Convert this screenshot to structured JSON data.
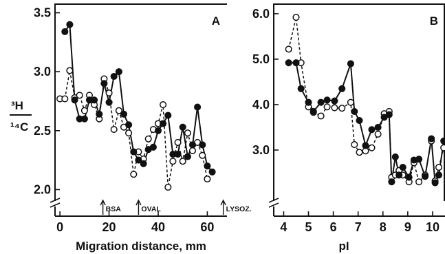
{
  "figure": {
    "ylabel_top": "³H",
    "ylabel_bottom": "¹⁴C"
  },
  "chart_data": [
    {
      "type": "line",
      "panel_label": "A",
      "title": "",
      "xlabel": "Migration distance, mm",
      "ylabel": "³H/¹⁴C",
      "xlim": [
        -2,
        68
      ],
      "ylim": [
        1.95,
        3.55
      ],
      "xticks": [
        0,
        20,
        40,
        60
      ],
      "yticks": [
        2.0,
        2.5,
        3.0,
        3.5
      ],
      "ytick_labels": [
        "2.0",
        "2.5",
        "3.0",
        "3.5"
      ],
      "grid": false,
      "legend": "none",
      "markers": [
        {
          "label": "BSA",
          "x": 17.5
        },
        {
          "label": "OVAL",
          "x": 32
        },
        {
          "label": "LYSOZ.",
          "x": 66.5
        }
      ],
      "series": [
        {
          "style": "filled-circle-solid",
          "points": [
            [
              2,
              3.34
            ],
            [
              4,
              3.4
            ],
            [
              6,
              2.76
            ],
            [
              8,
              2.6
            ],
            [
              10,
              2.6
            ],
            [
              12,
              2.76
            ],
            [
              14,
              2.76
            ],
            [
              16,
              2.64
            ],
            [
              18,
              2.9
            ],
            [
              20,
              2.74
            ],
            [
              22,
              2.96
            ],
            [
              24,
              3.0
            ],
            [
              26,
              2.64
            ],
            [
              28,
              2.55
            ],
            [
              30,
              2.32
            ],
            [
              32,
              2.25
            ],
            [
              34,
              2.22
            ],
            [
              36,
              2.34
            ],
            [
              38,
              2.36
            ],
            [
              40,
              2.5
            ],
            [
              42,
              2.56
            ],
            [
              44,
              2.63
            ],
            [
              46,
              2.3
            ],
            [
              48,
              2.3
            ],
            [
              50,
              2.53
            ],
            [
              52,
              2.28
            ],
            [
              54,
              2.38
            ],
            [
              56,
              2.7
            ],
            [
              58,
              2.38
            ],
            [
              60,
              2.2
            ],
            [
              62,
              2.15
            ]
          ]
        },
        {
          "style": "open-circle-dashed",
          "points": [
            [
              0,
              2.77
            ],
            [
              2,
              2.77
            ],
            [
              4,
              3.01
            ],
            [
              6,
              2.78
            ],
            [
              8,
              2.8
            ],
            [
              10,
              2.67
            ],
            [
              12,
              2.8
            ],
            [
              14,
              2.72
            ],
            [
              16,
              2.6
            ],
            [
              18,
              2.94
            ],
            [
              20,
              2.82
            ],
            [
              22,
              2.51
            ],
            [
              24,
              2.67
            ],
            [
              26,
              2.53
            ],
            [
              28,
              2.48
            ],
            [
              30,
              2.13
            ],
            [
              32,
              2.32
            ],
            [
              34,
              2.26
            ],
            [
              36,
              2.43
            ],
            [
              38,
              2.51
            ],
            [
              40,
              2.56
            ],
            [
              42,
              2.72
            ],
            [
              44,
              2.02
            ],
            [
              46,
              2.24
            ],
            [
              48,
              2.4
            ],
            [
              50,
              2.24
            ],
            [
              52,
              2.48
            ],
            [
              54,
              2.33
            ],
            [
              56,
              2.4
            ],
            [
              58,
              2.29
            ],
            [
              60,
              2.09
            ]
          ]
        }
      ]
    },
    {
      "type": "line",
      "panel_label": "B",
      "title": "",
      "xlabel": "pI",
      "ylabel": "³H/¹⁴C",
      "xlim": [
        3.6,
        10.5
      ],
      "ylim": [
        2.0,
        6.15
      ],
      "xticks": [
        4,
        5,
        6,
        7,
        8,
        9,
        10
      ],
      "yticks": [
        3.0,
        4.0,
        5.0,
        6.0
      ],
      "ytick_labels": [
        "3.0",
        "4.0",
        "5.0",
        "6.0"
      ],
      "grid": false,
      "legend": "none",
      "series": [
        {
          "style": "filled-circle-solid",
          "points": [
            [
              4.2,
              4.92
            ],
            [
              4.5,
              4.92
            ],
            [
              4.7,
              4.35
            ],
            [
              5.0,
              4.05
            ],
            [
              5.2,
              3.85
            ],
            [
              5.5,
              4.05
            ],
            [
              5.75,
              4.1
            ],
            [
              6.05,
              4.08
            ],
            [
              6.35,
              4.35
            ],
            [
              6.7,
              4.9
            ],
            [
              6.85,
              3.85
            ],
            [
              7.05,
              3.65
            ],
            [
              7.3,
              3.1
            ],
            [
              7.55,
              3.45
            ],
            [
              7.8,
              3.5
            ],
            [
              8.05,
              3.72
            ],
            [
              8.25,
              3.78
            ],
            [
              8.35,
              2.3
            ],
            [
              8.5,
              2.85
            ],
            [
              8.65,
              2.45
            ],
            [
              8.8,
              2.62
            ],
            [
              9.05,
              2.4
            ],
            [
              9.25,
              2.78
            ],
            [
              9.45,
              2.8
            ],
            [
              9.7,
              2.42
            ],
            [
              9.95,
              3.25
            ],
            [
              10.1,
              2.28
            ],
            [
              10.25,
              2.45
            ],
            [
              10.45,
              3.2
            ]
          ]
        },
        {
          "style": "open-circle-dashed",
          "points": [
            [
              4.2,
              5.22
            ],
            [
              4.5,
              5.92
            ],
            [
              4.7,
              4.92
            ],
            [
              5.0,
              3.95
            ],
            [
              5.2,
              3.83
            ],
            [
              5.5,
              3.75
            ],
            [
              5.75,
              3.95
            ],
            [
              6.05,
              3.93
            ],
            [
              6.35,
              3.92
            ],
            [
              6.7,
              4.05
            ],
            [
              6.85,
              3.12
            ],
            [
              7.05,
              2.95
            ],
            [
              7.3,
              2.98
            ],
            [
              7.55,
              3.05
            ],
            [
              7.8,
              3.35
            ],
            [
              8.05,
              3.8
            ],
            [
              8.25,
              3.85
            ],
            [
              8.35,
              2.4
            ],
            [
              8.5,
              2.45
            ],
            [
              8.65,
              2.55
            ],
            [
              8.8,
              2.45
            ],
            [
              9.05,
              2.3
            ],
            [
              9.25,
              2.72
            ],
            [
              9.45,
              2.3
            ],
            [
              9.7,
              2.45
            ],
            [
              9.95,
              3.2
            ],
            [
              10.1,
              2.32
            ],
            [
              10.25,
              2.62
            ],
            [
              10.45,
              3.05
            ]
          ]
        }
      ]
    }
  ]
}
